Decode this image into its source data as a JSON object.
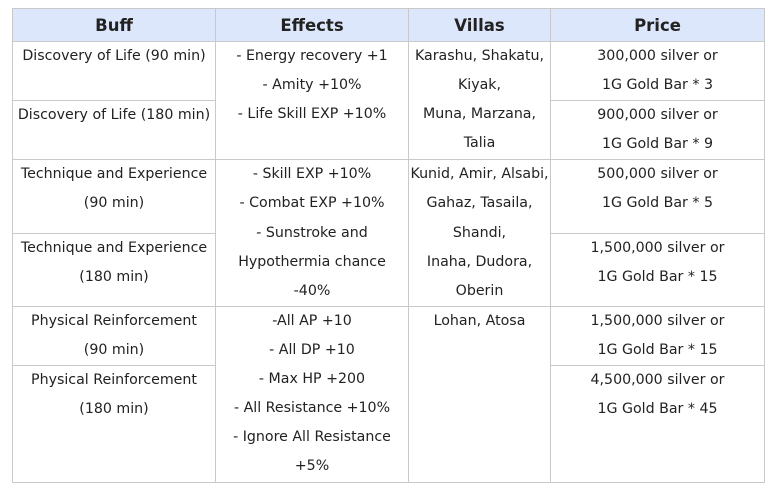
{
  "headers": {
    "buff": "Buff",
    "effects": "Effects",
    "villas": "Villas",
    "price": "Price"
  },
  "groups": [
    {
      "rows": [
        {
          "buff": [
            "Discovery of Life (90 min)"
          ],
          "price": [
            "300,000 silver or",
            "1G Gold Bar * 3"
          ]
        },
        {
          "buff": [
            "Discovery of Life (180 min)"
          ],
          "price": [
            "900,000 silver or",
            "1G Gold Bar * 9"
          ]
        }
      ],
      "effects": [
        "- Energy recovery +1",
        "- Amity +10%",
        "- Life Skill EXP +10%"
      ],
      "villas": [
        "Karashu, Shakatu,",
        "Kiyak,",
        "Muna, Marzana,",
        "Talia"
      ]
    },
    {
      "rows": [
        {
          "buff": [
            "Technique and Experience",
            "(90 min)"
          ],
          "price": [
            "500,000 silver or",
            "1G Gold Bar * 5"
          ]
        },
        {
          "buff": [
            "Technique and Experience",
            "(180 min)"
          ],
          "price": [
            "1,500,000 silver or",
            "1G Gold Bar * 15"
          ]
        }
      ],
      "effects": [
        "- Skill EXP +10%",
        "- Combat EXP +10%",
        "- Sunstroke and",
        "Hypothermia chance",
        "-40%"
      ],
      "villas": [
        "Kunid, Amir, Alsabi,",
        "Gahaz, Tasaila,",
        "Shandi,",
        "Inaha, Dudora,",
        "Oberin"
      ]
    },
    {
      "rows": [
        {
          "buff": [
            "Physical Reinforcement",
            "(90 min)"
          ],
          "price": [
            "1,500,000 silver or",
            "1G Gold Bar * 15"
          ]
        },
        {
          "buff": [
            "Physical Reinforcement",
            "(180 min)"
          ],
          "price": [
            "4,500,000 silver or",
            "1G Gold Bar * 45"
          ]
        }
      ],
      "effects": [
        "-All AP +10",
        "- All DP +10",
        "- Max HP +200",
        "- All Resistance +10%",
        "- Ignore All Resistance",
        "+5%"
      ],
      "villas": [
        "Lohan, Atosa"
      ]
    }
  ]
}
